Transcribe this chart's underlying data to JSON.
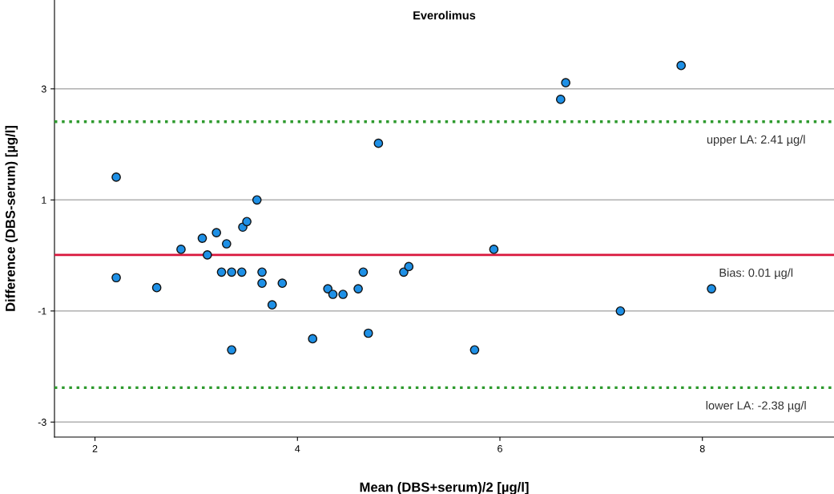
{
  "chart_data": {
    "type": "scatter",
    "title": "Everolimus",
    "xlabel": "Mean (DBS+serum)/2 [µg/l]",
    "ylabel": "Difference (DBS-serum) [µg/l]",
    "x": [
      2.21,
      2.21,
      2.61,
      2.85,
      3.06,
      3.11,
      3.2,
      3.25,
      3.3,
      3.35,
      3.35,
      3.45,
      3.46,
      3.5,
      3.6,
      3.65,
      3.65,
      3.75,
      3.85,
      4.15,
      4.3,
      4.35,
      4.45,
      4.6,
      4.65,
      4.7,
      4.8,
      5.05,
      5.1,
      5.75,
      5.94,
      6.6,
      6.65,
      7.19,
      7.79,
      8.09
    ],
    "series": [
      {
        "color": "#1e90e6",
        "values": [
          1.41,
          -0.4,
          -0.58,
          0.11,
          0.31,
          0.01,
          0.41,
          -0.3,
          0.21,
          -0.3,
          -1.7,
          -0.3,
          0.51,
          0.61,
          1.0,
          -0.3,
          -0.5,
          -0.89,
          -0.5,
          -1.5,
          -0.6,
          -0.7,
          -0.7,
          -0.6,
          -0.3,
          -1.4,
          2.02,
          -0.3,
          -0.2,
          -1.7,
          0.11,
          2.81,
          3.11,
          -1.0,
          3.42,
          -0.6
        ]
      }
    ],
    "marker": "circle",
    "xlim": [
      1.6,
      9.3
    ],
    "ylim": [
      -3.27,
      4.6
    ],
    "xticks": [
      2,
      4,
      6,
      8
    ],
    "yticks": [
      -3,
      -1,
      1,
      3
    ],
    "grid": "y",
    "ref_lines": [
      {
        "axis": "y",
        "value": 2.41,
        "label": "upper LA: 2.41 µg/l",
        "color": "#2e9a2e",
        "line_style": "dotted"
      },
      {
        "axis": "y",
        "value": 0.01,
        "label": "Bias: 0.01 µg/l",
        "color": "#d9163c",
        "line_style": "solid"
      },
      {
        "axis": "y",
        "value": -2.38,
        "label": "lower LA: -2.38 µg/l",
        "color": "#2e9a2e",
        "line_style": "dotted"
      }
    ]
  }
}
